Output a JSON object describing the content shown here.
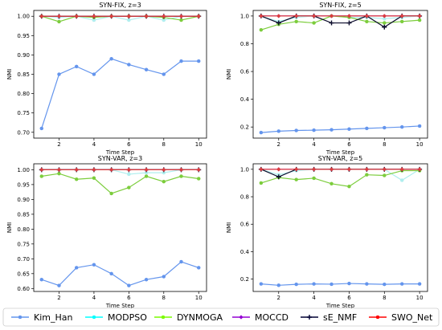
{
  "chart_data": [
    {
      "type": "line",
      "title": "SYN-FIX, z=3",
      "xlabel": "Time Step",
      "ylabel": "NMI",
      "xlim": [
        0.55,
        10.45
      ],
      "ylim": [
        0.685,
        1.015
      ],
      "xticks": [
        2,
        4,
        6,
        8,
        10
      ],
      "yticks": [
        0.7,
        0.75,
        0.8,
        0.85,
        0.9,
        0.95,
        1.0
      ],
      "ytick_labels": [
        "0.70",
        "0.75",
        "0.80",
        "0.85",
        "0.90",
        "0.95",
        "1.00"
      ],
      "x": [
        1,
        2,
        3,
        4,
        5,
        6,
        7,
        8,
        9,
        10
      ],
      "series": [
        {
          "name": "Kim_Han",
          "values": [
            0.71,
            0.85,
            0.87,
            0.85,
            0.89,
            0.875,
            0.862,
            0.85,
            0.884,
            0.884
          ]
        },
        {
          "name": "MODPSO",
          "values": [
            1.0,
            0.997,
            1.0,
            0.99,
            1.0,
            0.99,
            1.0,
            0.99,
            1.0,
            1.0
          ]
        },
        {
          "name": "DYNMOGA",
          "values": [
            1.0,
            0.986,
            1.0,
            0.997,
            1.0,
            1.0,
            1.0,
            0.997,
            0.99,
            1.0
          ]
        },
        {
          "name": "MOCCD",
          "values": [
            1.0,
            1.0,
            1.0,
            1.0,
            1.0,
            1.0,
            1.0,
            1.0,
            1.0,
            1.0
          ]
        },
        {
          "name": "sE_NMF",
          "values": [
            1.0,
            1.0,
            1.0,
            1.0,
            1.0,
            1.0,
            1.0,
            1.0,
            1.0,
            1.0
          ]
        },
        {
          "name": "SWO_Net",
          "values": [
            1.0,
            1.0,
            1.0,
            1.0,
            1.0,
            1.0,
            1.0,
            1.0,
            1.0,
            1.0
          ]
        }
      ]
    },
    {
      "type": "line",
      "title": "SYN-FIX, z=5",
      "xlabel": "Time Step",
      "ylabel": "NMI",
      "xlim": [
        0.55,
        10.45
      ],
      "ylim": [
        0.12,
        1.04
      ],
      "xticks": [
        2,
        4,
        6,
        8,
        10
      ],
      "yticks": [
        0.2,
        0.4,
        0.6,
        0.8,
        1.0
      ],
      "ytick_labels": [
        "0.2",
        "0.4",
        "0.6",
        "0.8",
        "1.0"
      ],
      "x": [
        1,
        2,
        3,
        4,
        5,
        6,
        7,
        8,
        9,
        10
      ],
      "series": [
        {
          "name": "Kim_Han",
          "values": [
            0.16,
            0.17,
            0.175,
            0.177,
            0.18,
            0.185,
            0.19,
            0.195,
            0.2,
            0.207
          ]
        },
        {
          "name": "MODPSO",
          "values": [
            1.0,
            0.96,
            0.99,
            1.0,
            1.0,
            0.99,
            0.99,
            0.98,
            0.99,
            1.0
          ]
        },
        {
          "name": "DYNMOGA",
          "values": [
            0.9,
            0.94,
            0.96,
            0.95,
            1.0,
            0.99,
            0.96,
            0.95,
            0.96,
            0.97
          ]
        },
        {
          "name": "MOCCD",
          "values": [
            1.0,
            1.0,
            1.0,
            1.0,
            1.0,
            1.0,
            1.0,
            1.0,
            1.0,
            1.0
          ]
        },
        {
          "name": "sE_NMF",
          "values": [
            1.0,
            0.95,
            1.0,
            1.0,
            0.95,
            0.95,
            1.0,
            0.92,
            1.0,
            1.0
          ]
        },
        {
          "name": "SWO_Net",
          "values": [
            1.0,
            1.0,
            1.0,
            1.0,
            1.0,
            1.0,
            1.0,
            1.0,
            1.0,
            1.0
          ]
        }
      ]
    },
    {
      "type": "line",
      "title": "SYN-VAR, z=3",
      "xlabel": "Time Step",
      "ylabel": "NMI",
      "xlim": [
        0.55,
        10.45
      ],
      "ylim": [
        0.59,
        1.02
      ],
      "xticks": [
        2,
        4,
        6,
        8,
        10
      ],
      "yticks": [
        0.6,
        0.65,
        0.7,
        0.75,
        0.8,
        0.85,
        0.9,
        0.95,
        1.0
      ],
      "ytick_labels": [
        "0.60",
        "0.65",
        "0.70",
        "0.75",
        "0.80",
        "0.85",
        "0.90",
        "0.95",
        "1.00"
      ],
      "x": [
        1,
        2,
        3,
        4,
        5,
        6,
        7,
        8,
        9,
        10
      ],
      "series": [
        {
          "name": "Kim_Han",
          "values": [
            0.63,
            0.61,
            0.67,
            0.68,
            0.65,
            0.61,
            0.63,
            0.64,
            0.69,
            0.67
          ]
        },
        {
          "name": "MODPSO",
          "values": [
            1.0,
            1.0,
            1.0,
            1.0,
            1.0,
            0.985,
            0.99,
            0.99,
            1.0,
            1.0
          ]
        },
        {
          "name": "DYNMOGA",
          "values": [
            0.978,
            0.987,
            0.968,
            0.972,
            0.92,
            0.94,
            0.978,
            0.96,
            0.978,
            0.97
          ]
        },
        {
          "name": "MOCCD",
          "values": [
            1.0,
            1.0,
            1.0,
            1.0,
            1.0,
            1.0,
            1.0,
            1.0,
            1.0,
            1.0
          ]
        },
        {
          "name": "sE_NMF",
          "values": [
            1.0,
            1.0,
            1.0,
            1.0,
            1.0,
            1.0,
            1.0,
            1.0,
            1.0,
            1.0
          ]
        },
        {
          "name": "SWO_Net",
          "values": [
            1.0,
            1.0,
            1.0,
            1.0,
            1.0,
            1.0,
            1.0,
            1.0,
            1.0,
            1.0
          ]
        }
      ]
    },
    {
      "type": "line",
      "title": "SYN-VAR, z=5",
      "xlabel": "Time Step",
      "ylabel": "NMI",
      "xlim": [
        0.55,
        10.45
      ],
      "ylim": [
        0.11,
        1.04
      ],
      "xticks": [
        2,
        4,
        6,
        8,
        10
      ],
      "yticks": [
        0.2,
        0.4,
        0.6,
        0.8,
        1.0
      ],
      "ytick_labels": [
        "0.2",
        "0.4",
        "0.6",
        "0.8",
        "1.0"
      ],
      "x": [
        1,
        2,
        3,
        4,
        5,
        6,
        7,
        8,
        9,
        10
      ],
      "series": [
        {
          "name": "Kim_Han",
          "values": [
            0.165,
            0.155,
            0.162,
            0.165,
            0.163,
            0.168,
            0.165,
            0.162,
            0.165,
            0.165
          ]
        },
        {
          "name": "MODPSO",
          "values": [
            1.0,
            0.96,
            0.99,
            1.0,
            1.0,
            1.0,
            1.0,
            1.0,
            0.92,
            1.0
          ]
        },
        {
          "name": "DYNMOGA",
          "values": [
            0.9,
            0.94,
            0.925,
            0.935,
            0.895,
            0.875,
            0.96,
            0.955,
            0.99,
            0.99
          ]
        },
        {
          "name": "MOCCD",
          "values": [
            1.0,
            1.0,
            1.0,
            1.0,
            1.0,
            1.0,
            1.0,
            1.0,
            1.0,
            1.0
          ]
        },
        {
          "name": "sE_NMF",
          "values": [
            1.0,
            0.945,
            1.0,
            1.0,
            1.0,
            1.0,
            1.0,
            1.0,
            1.0,
            1.0
          ]
        },
        {
          "name": "SWO_Net",
          "values": [
            1.0,
            1.0,
            1.0,
            1.0,
            1.0,
            1.0,
            1.0,
            1.0,
            1.0,
            1.0
          ]
        }
      ]
    }
  ],
  "legend": {
    "placement": "bottom",
    "items": [
      {
        "name": "Kim_Han",
        "color": "#6495ED",
        "marker": "circle"
      },
      {
        "name": "MODPSO",
        "color": "#00FFFF",
        "marker": "circle"
      },
      {
        "name": "DYNMOGA",
        "color": "#7CFC00",
        "marker": "circle"
      },
      {
        "name": "MOCCD",
        "color": "#9400D3",
        "marker": "diamond"
      },
      {
        "name": "sE_NMF",
        "color": "#000033",
        "marker": "plus"
      },
      {
        "name": "SWO_Net",
        "color": "#FF0000",
        "marker": "circle"
      }
    ]
  },
  "series_style": {
    "Kim_Han": {
      "color": "#6495ED",
      "marker": "circle"
    },
    "MODPSO": {
      "color": "#AFEEEE",
      "marker": "circle"
    },
    "DYNMOGA": {
      "color": "#7CCD3C",
      "marker": "circle"
    },
    "MOCCD": {
      "color": "#9400D3",
      "marker": "diamond"
    },
    "sE_NMF": {
      "color": "#0B0B2B",
      "marker": "plus"
    },
    "SWO_Net": {
      "color": "#DC3C3C",
      "marker": "diamond"
    }
  }
}
